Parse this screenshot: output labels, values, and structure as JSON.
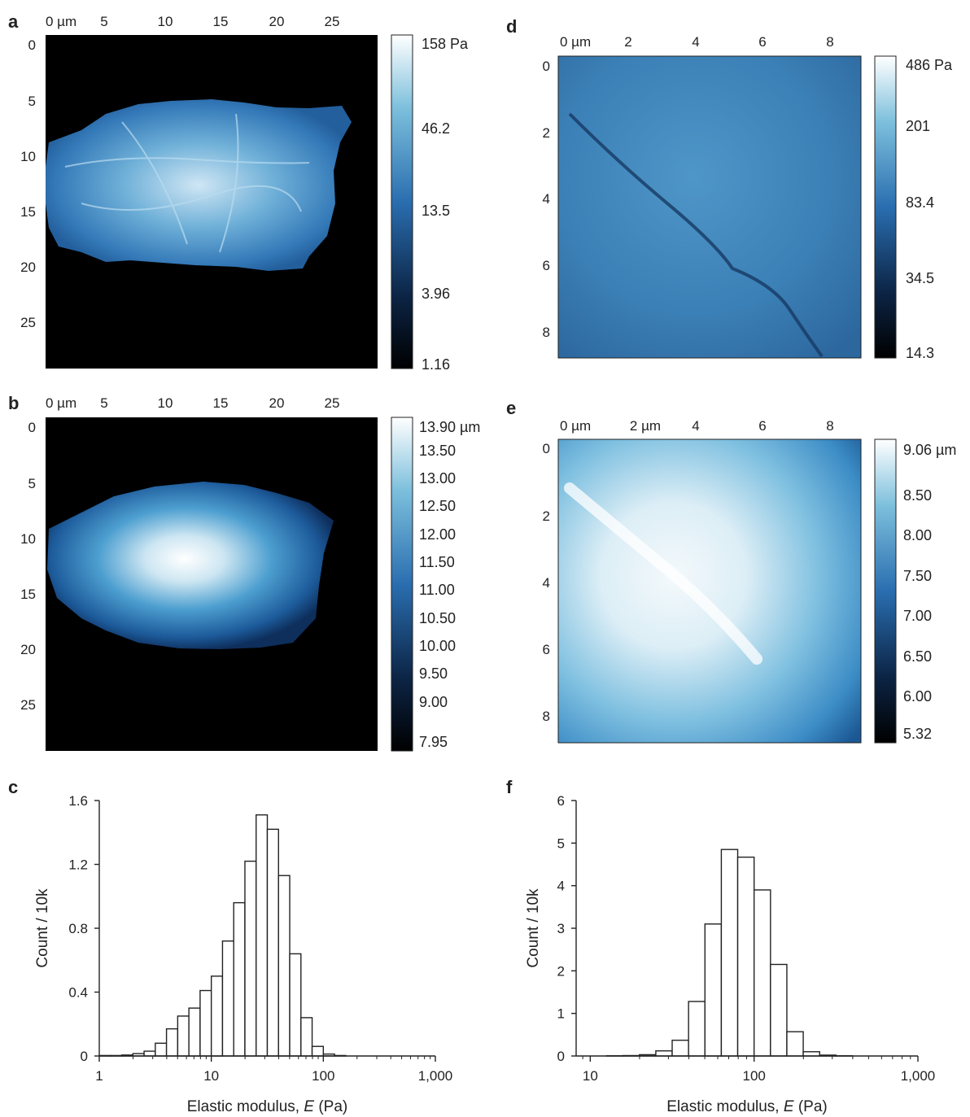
{
  "colors": {
    "map_low": "#000000",
    "map_mid": "#2a6eb0",
    "map_high": "#ffffff",
    "background": "#ffffff",
    "axis": "#222222"
  },
  "panels": {
    "a": {
      "label": "a",
      "type": "heatmap",
      "quantity": "elastic modulus map",
      "x_ticks": [
        "0 µm",
        "5",
        "10",
        "15",
        "20",
        "25"
      ],
      "y_ticks": [
        "0",
        "5",
        "10",
        "15",
        "20",
        "25"
      ],
      "colorbar_ticks": [
        "158 Pa",
        "46.2",
        "13.5",
        "3.96",
        "1.16"
      ]
    },
    "b": {
      "label": "b",
      "type": "heatmap",
      "quantity": "height map",
      "x_ticks": [
        "0 µm",
        "5",
        "10",
        "15",
        "20",
        "25"
      ],
      "y_ticks": [
        "0",
        "5",
        "10",
        "15",
        "20",
        "25"
      ],
      "colorbar_ticks": [
        "13.90 µm",
        "13.50",
        "13.00",
        "12.50",
        "12.00",
        "11.50",
        "11.00",
        "10.50",
        "10.00",
        "9.50",
        "9.00",
        "7.95"
      ]
    },
    "d": {
      "label": "d",
      "type": "heatmap",
      "quantity": "elastic modulus map",
      "x_ticks": [
        "0 µm",
        "2",
        "4",
        "6",
        "8"
      ],
      "y_ticks": [
        "0",
        "2",
        "4",
        "6",
        "8"
      ],
      "colorbar_ticks": [
        "486 Pa",
        "201",
        "83.4",
        "34.5",
        "14.3"
      ]
    },
    "e": {
      "label": "e",
      "type": "heatmap",
      "quantity": "height map",
      "x_ticks": [
        "0 µm",
        "2 µm",
        "4",
        "6",
        "8"
      ],
      "y_ticks": [
        "0",
        "2",
        "4",
        "6",
        "8"
      ],
      "colorbar_ticks": [
        "9.06 µm",
        "8.50",
        "8.00",
        "7.50",
        "7.00",
        "6.50",
        "6.00",
        "5.32"
      ]
    }
  },
  "chart_data": [
    {
      "panel": "c",
      "type": "bar",
      "xlabel_prefix": "Elastic modulus, ",
      "xlabel_var": "E",
      "xlabel_suffix": " (Pa)",
      "ylabel": "Count / 10k",
      "x_scale": "log",
      "xlim": [
        1,
        1000
      ],
      "ylim": [
        0,
        1.6
      ],
      "x_tick_values": [
        1,
        10,
        100,
        1000
      ],
      "x_tick_labels": [
        "1",
        "10",
        "100",
        "1,000"
      ],
      "y_tick_values": [
        0,
        0.4,
        0.8,
        1.2,
        1.6
      ],
      "y_tick_labels": [
        "0",
        "0.4",
        "0.8",
        "1.2",
        "1.6"
      ],
      "bins": [
        {
          "from": 1.0,
          "to": 1.259,
          "count": 0.003
        },
        {
          "from": 1.259,
          "to": 1.585,
          "count": 0.003
        },
        {
          "from": 1.585,
          "to": 1.995,
          "count": 0.006
        },
        {
          "from": 1.995,
          "to": 2.512,
          "count": 0.015
        },
        {
          "from": 2.512,
          "to": 3.162,
          "count": 0.03
        },
        {
          "from": 3.162,
          "to": 3.981,
          "count": 0.08
        },
        {
          "from": 3.981,
          "to": 5.012,
          "count": 0.17
        },
        {
          "from": 5.012,
          "to": 6.31,
          "count": 0.25
        },
        {
          "from": 6.31,
          "to": 7.943,
          "count": 0.3
        },
        {
          "from": 7.943,
          "to": 10.0,
          "count": 0.41
        },
        {
          "from": 10.0,
          "to": 12.59,
          "count": 0.5
        },
        {
          "from": 12.59,
          "to": 15.85,
          "count": 0.72
        },
        {
          "from": 15.85,
          "to": 19.95,
          "count": 0.96
        },
        {
          "from": 19.95,
          "to": 25.12,
          "count": 1.22
        },
        {
          "from": 25.12,
          "to": 31.62,
          "count": 1.51
        },
        {
          "from": 31.62,
          "to": 39.81,
          "count": 1.42
        },
        {
          "from": 39.81,
          "to": 50.12,
          "count": 1.13
        },
        {
          "from": 50.12,
          "to": 63.1,
          "count": 0.64
        },
        {
          "from": 63.1,
          "to": 79.43,
          "count": 0.24
        },
        {
          "from": 79.43,
          "to": 100.0,
          "count": 0.06
        },
        {
          "from": 100.0,
          "to": 125.9,
          "count": 0.012
        },
        {
          "from": 125.9,
          "to": 158.5,
          "count": 0.003
        }
      ]
    },
    {
      "panel": "f",
      "type": "bar",
      "xlabel_prefix": "Elastic modulus, ",
      "xlabel_var": "E",
      "xlabel_suffix": " (Pa)",
      "ylabel": "Count / 10k",
      "x_scale": "log",
      "xlim": [
        8.2,
        1000
      ],
      "ylim": [
        0,
        6
      ],
      "x_tick_values": [
        10,
        100,
        1000
      ],
      "x_tick_labels": [
        "10",
        "100",
        "1,000"
      ],
      "y_tick_values": [
        0,
        1,
        2,
        3,
        4,
        5,
        6
      ],
      "y_tick_labels": [
        "0",
        "1",
        "2",
        "3",
        "4",
        "5",
        "6"
      ],
      "bins": [
        {
          "from": 12.59,
          "to": 15.85,
          "count": 0.005
        },
        {
          "from": 15.85,
          "to": 19.95,
          "count": 0.01
        },
        {
          "from": 19.95,
          "to": 25.12,
          "count": 0.03
        },
        {
          "from": 25.12,
          "to": 31.62,
          "count": 0.12
        },
        {
          "from": 31.62,
          "to": 39.81,
          "count": 0.37
        },
        {
          "from": 39.81,
          "to": 50.12,
          "count": 1.28
        },
        {
          "from": 50.12,
          "to": 63.1,
          "count": 3.1
        },
        {
          "from": 63.1,
          "to": 79.43,
          "count": 4.85
        },
        {
          "from": 79.43,
          "to": 100.0,
          "count": 4.67
        },
        {
          "from": 100.0,
          "to": 125.9,
          "count": 3.9
        },
        {
          "from": 125.9,
          "to": 158.5,
          "count": 2.15
        },
        {
          "from": 158.5,
          "to": 199.5,
          "count": 0.57
        },
        {
          "from": 199.5,
          "to": 251.2,
          "count": 0.1
        },
        {
          "from": 251.2,
          "to": 316.2,
          "count": 0.02
        },
        {
          "from": 316.2,
          "to": 398.1,
          "count": 0.005
        }
      ]
    }
  ]
}
